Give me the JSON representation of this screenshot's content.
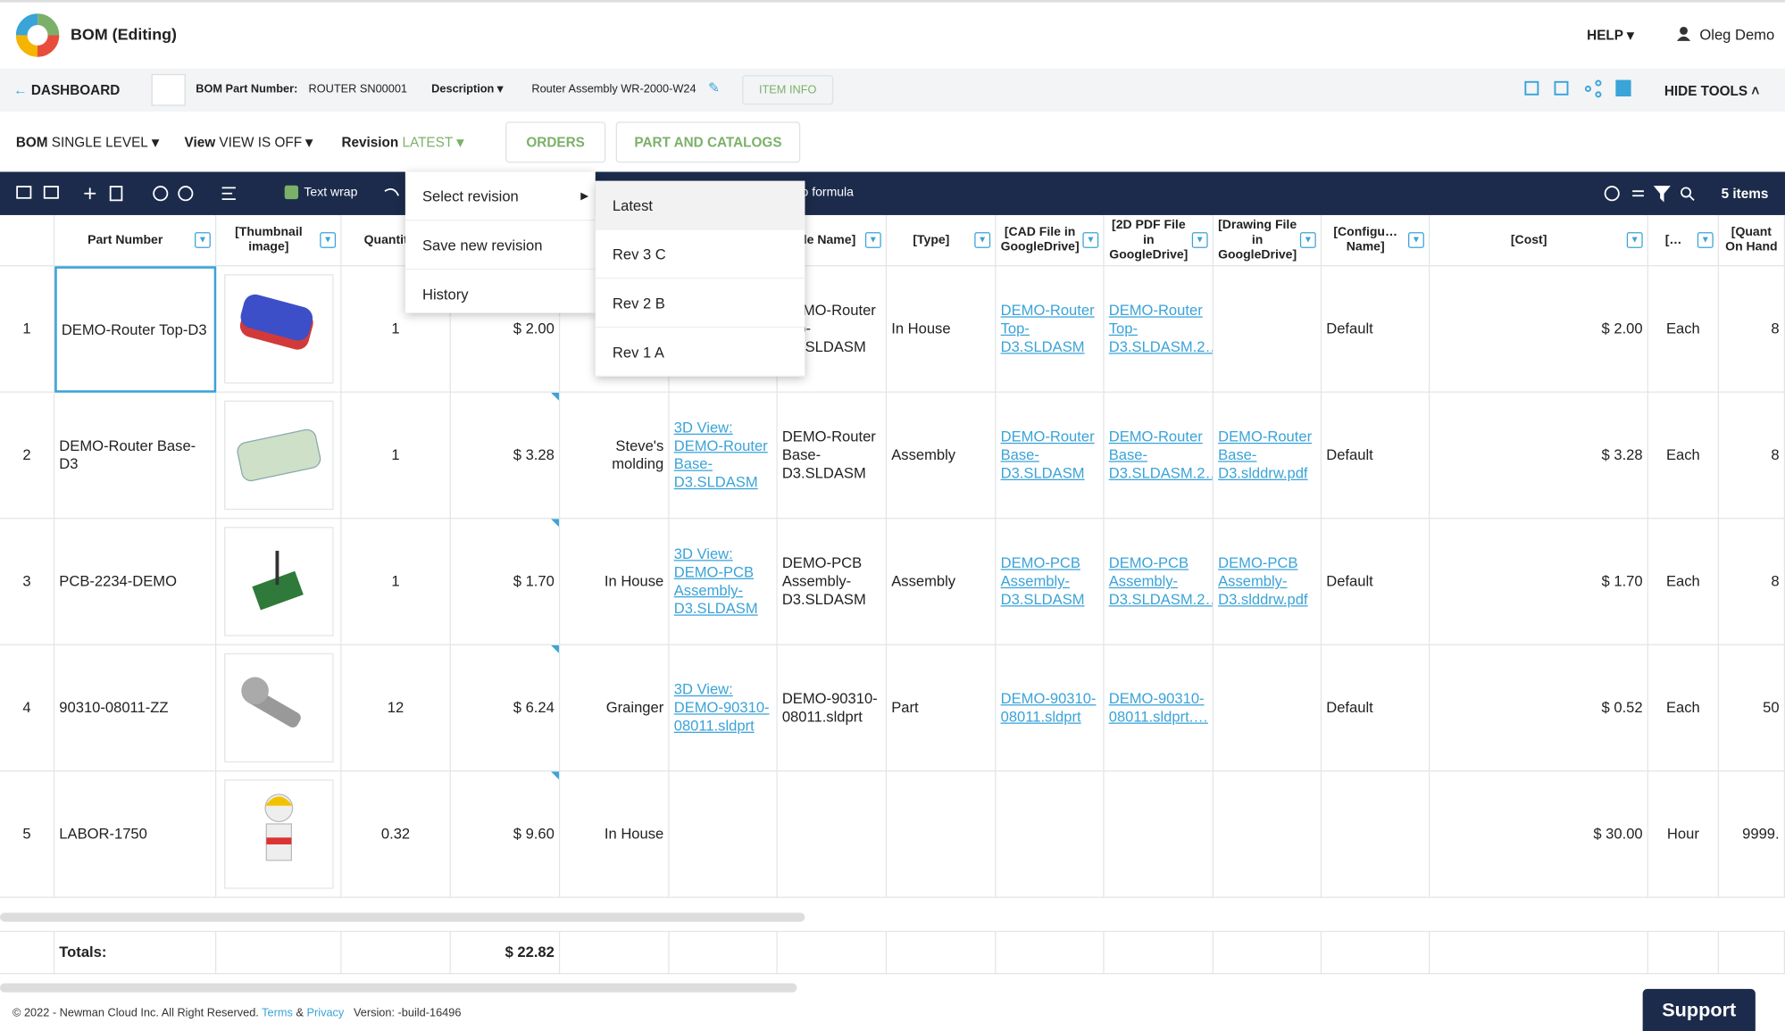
{
  "header": {
    "title": "BOM (Editing)",
    "help": "HELP",
    "user": "Oleg Demo"
  },
  "toolbar": {
    "dashboard": "DASHBOARD",
    "part_number_label": "BOM Part Number:",
    "part_number": "ROUTER SN00001",
    "description_label": "Description",
    "description": "Router Assembly WR-2000-W24",
    "item_info": "ITEM INFO",
    "hide_tools": "HIDE TOOLS"
  },
  "view_bar": {
    "bom_label": "BOM",
    "bom_value": "SINGLE LEVEL",
    "view_label": "View",
    "view_value": "VIEW IS OFF",
    "revision_label": "Revision",
    "revision_value": "LATEST",
    "orders": "ORDERS",
    "part_catalogs": "PART AND CATALOGS"
  },
  "grid_toolbar": {
    "text_wrap": "Text wrap",
    "formula": "o formula",
    "items": "5 items"
  },
  "revision_menu": {
    "items": [
      "Select revision",
      "Save new revision",
      "History"
    ],
    "submenu": [
      "Latest",
      "Rev 3 C",
      "Rev 2 B",
      "Rev 1 A"
    ]
  },
  "table": {
    "columns": [
      null,
      "Part Number",
      "[Thumbnail image]",
      "Quantit",
      null,
      null,
      null,
      "[File Name]",
      "[Type]",
      "[CAD File in GoogleDrive]",
      "[2D PDF File in GoogleDrive]",
      "[Drawing File in GoogleDrive]",
      "[Configu… Name]",
      "[Cost]",
      "[…",
      "[Quant On Hand"
    ],
    "rows": [
      {
        "cells": [
          "1",
          "DEMO-Router Top-D3",
          null,
          "1",
          "$ 2.00",
          null,
          null,
          "DEMO-Router Top-D3.SLDASM",
          "In House",
          "DEMO-Router Top-D3.SLDASM",
          "DEMO-Router Top-D3.SLDASM.2…",
          null,
          "Default",
          "$ 2.00",
          "Each",
          "8"
        ]
      },
      {
        "cells": [
          "2",
          "DEMO-Router Base-D3",
          null,
          "1",
          "$ 3.28",
          "Steve's molding",
          "3D View: DEMO-Router Base-D3.SLDASM",
          "DEMO-Router Base-D3.SLDASM",
          "Assembly",
          "DEMO-Router Base-D3.SLDASM",
          "DEMO-Router Base-D3.SLDASM.2…",
          "DEMO-Router Base-D3.slddrw.pdf",
          "Default",
          "$ 3.28",
          "Each",
          "8"
        ]
      },
      {
        "cells": [
          "3",
          "PCB-2234-DEMO",
          null,
          "1",
          "$ 1.70",
          "In House",
          "3D View: DEMO-PCB Assembly-D3.SLDASM",
          "DEMO-PCB Assembly-D3.SLDASM",
          "Assembly",
          "DEMO-PCB Assembly-D3.SLDASM",
          "DEMO-PCB Assembly-D3.SLDASM.2…",
          "DEMO-PCB Assembly-D3.slddrw.pdf",
          "Default",
          "$ 1.70",
          "Each",
          "8"
        ]
      },
      {
        "cells": [
          "4",
          "90310-08011-ZZ",
          null,
          "12",
          "$ 6.24",
          "Grainger",
          "3D View: DEMO-90310-08011.sldprt",
          "DEMO-90310-08011.sldprt",
          "Part",
          "DEMO-90310-08011.sldprt",
          "DEMO-90310-08011.sldprt.…",
          null,
          "Default",
          "$ 0.52",
          "Each",
          "50"
        ]
      },
      {
        "cells": [
          "5",
          "LABOR-1750",
          null,
          "0.32",
          "$ 9.60",
          "In House",
          null,
          null,
          null,
          null,
          null,
          null,
          null,
          "$ 30.00",
          "Hour",
          "9999."
        ]
      }
    ],
    "totals": {
      "label": "Totals:",
      "price": "$ 22.82"
    }
  },
  "footer": {
    "copyright": "© 2022 - Newman Cloud Inc. All Right Reserved.",
    "terms": "Terms",
    "and": "&",
    "privacy": "Privacy",
    "version": "Version: -build-16496",
    "support": "Support"
  }
}
